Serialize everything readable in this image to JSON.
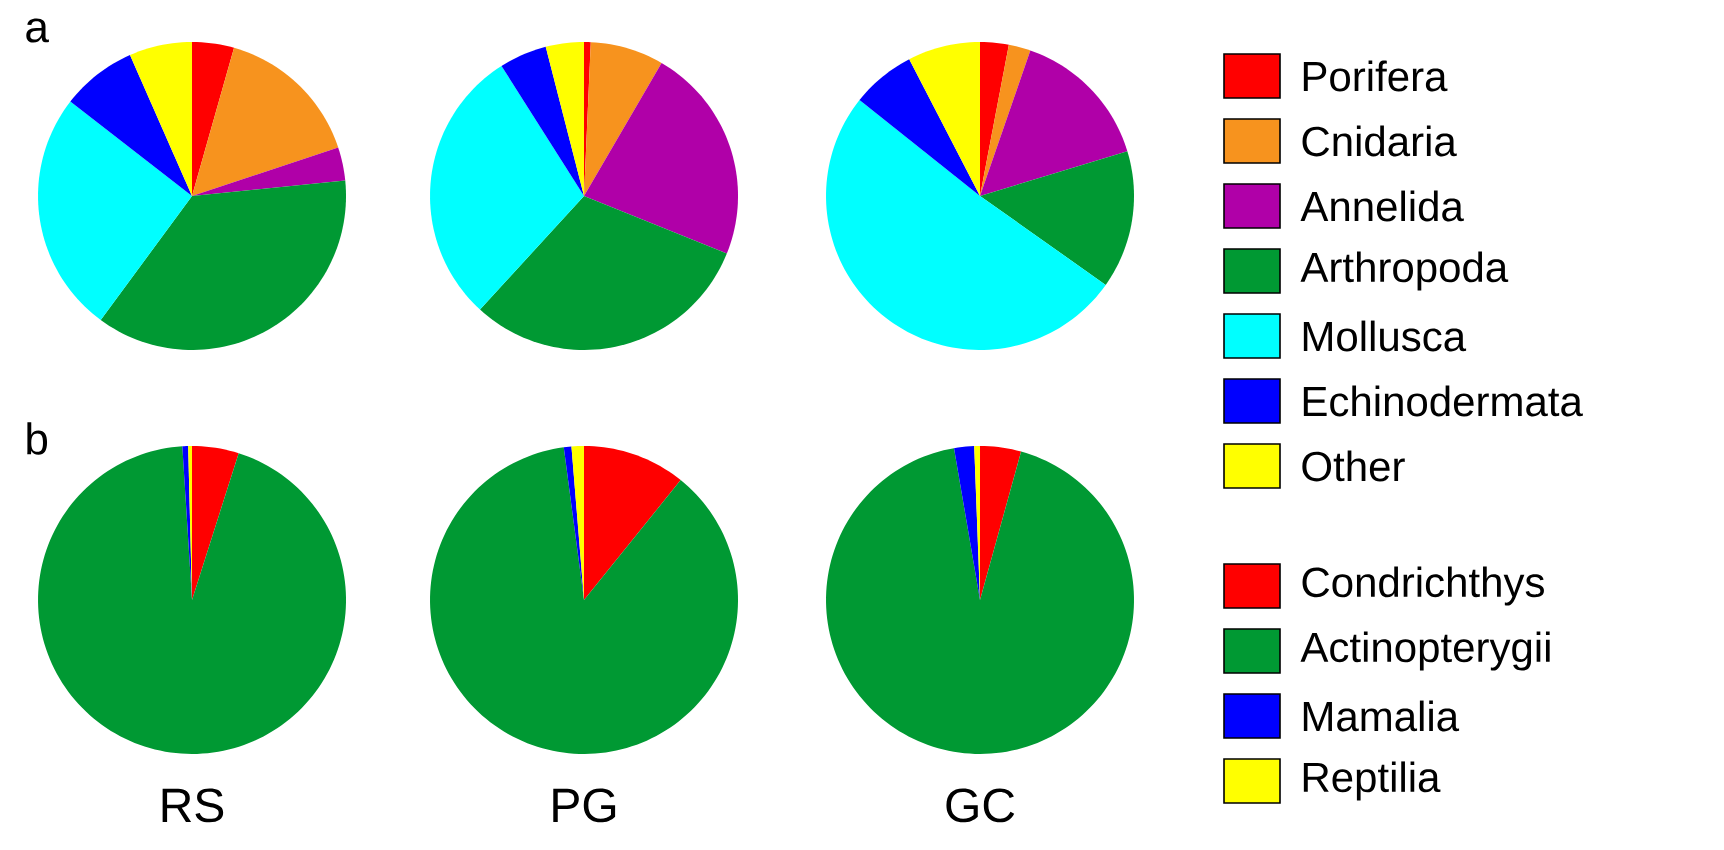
{
  "chart_data": [
    {
      "type": "pie",
      "annotations": [
        "a"
      ],
      "legend": "right",
      "categories": [
        "Porifera",
        "Cnidaria",
        "Annelida",
        "Arthropoda",
        "Mollusca",
        "Echinodermata",
        "Other"
      ],
      "values": [
        4.4,
        15.5,
        3.5,
        36.7,
        25.4,
        7.9,
        6.6
      ],
      "colors": [
        "#ff0000",
        "#f7931e",
        "#b000a8",
        "#009933",
        "#00ffff",
        "#0000ff",
        "#ffff00"
      ]
    },
    {
      "type": "pie",
      "categories": [
        null,
        null,
        null,
        null,
        null,
        null,
        null
      ],
      "values": [
        0.7,
        7.7,
        22.7,
        30.7,
        29.2,
        5.0,
        4.0
      ],
      "colors": [
        "#ff0000",
        "#f7931e",
        "#b000a8",
        "#009933",
        "#00ffff",
        "#0000ff",
        "#ffff00"
      ]
    },
    {
      "type": "pie",
      "categories": [
        null,
        null,
        null,
        null,
        null,
        null,
        null
      ],
      "values": [
        3.0,
        2.3,
        15.0,
        14.5,
        50.9,
        6.7,
        7.6
      ],
      "colors": [
        "#ff0000",
        "#f7931e",
        "#b000a8",
        "#009933",
        "#00ffff",
        "#0000ff",
        "#ffff00"
      ]
    },
    {
      "type": "pie",
      "annotations": [
        "b"
      ],
      "xlabel": "RS",
      "legend": "right",
      "categories": [
        "Condrichthys",
        "Actinopterygii",
        "Mamalia",
        "Reptilia"
      ],
      "values": [
        4.9,
        94.1,
        0.6,
        0.4
      ],
      "colors": [
        "#ff0000",
        "#009933",
        "#0000ff",
        "#ffff00"
      ]
    },
    {
      "type": "pie",
      "xlabel": "PG",
      "categories": [
        null,
        null,
        null,
        null
      ],
      "values": [
        10.8,
        87.1,
        0.8,
        1.3
      ],
      "colors": [
        "#ff0000",
        "#009933",
        "#0000ff",
        "#ffff00"
      ]
    },
    {
      "type": "pie",
      "xlabel": "GC",
      "categories": [
        null,
        null,
        null,
        null
      ],
      "values": [
        4.3,
        93.0,
        2.1,
        0.6
      ],
      "colors": [
        "#ff0000",
        "#009933",
        "#0000ff",
        "#ffff00"
      ]
    }
  ]
}
